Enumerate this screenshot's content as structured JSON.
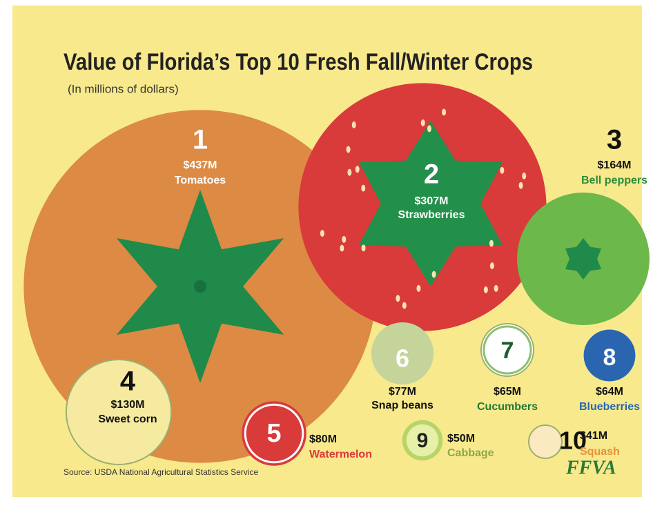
{
  "chart_data": {
    "type": "bubble",
    "title": "Value of Florida’s Top 10 Fresh Fall/Winter Crops",
    "subtitle": "(In millions of dollars)",
    "ranks": [
      "1",
      "2",
      "3",
      "4",
      "5",
      "6",
      "7",
      "8",
      "9",
      "10"
    ],
    "categories": [
      "Tomatoes",
      "Strawberries",
      "Bell peppers",
      "Sweet corn",
      "Watermelon",
      "Snap beans",
      "Cucumbers",
      "Blueberries",
      "Cabbage",
      "Squash"
    ],
    "values": [
      437,
      307,
      164,
      130,
      80,
      77,
      65,
      64,
      50,
      41
    ],
    "value_labels": [
      "$437M",
      "$307M",
      "$164M",
      "$130M",
      "$80M",
      "$77M",
      "$65M",
      "$64M",
      "$50M",
      "$41M"
    ],
    "colors": [
      "#dc8a44",
      "#d93a3a",
      "#6cb84a",
      "#f6eaa0",
      "#d93a3a",
      "#c4d49a",
      "#ffffff",
      "#2a66b0",
      "#b8d468",
      "#fbe9c0"
    ],
    "name_colors": [
      "#ffffff",
      "#ffffff",
      "#2e8b3a",
      "#111111",
      "#d93a3a",
      "#111111",
      "#1f7a35",
      "#2a66b0",
      "#8aa84a",
      "#e8903a"
    ],
    "source": "Source: USDA National Agricultural Statistics Service",
    "logo": "FFVA"
  }
}
